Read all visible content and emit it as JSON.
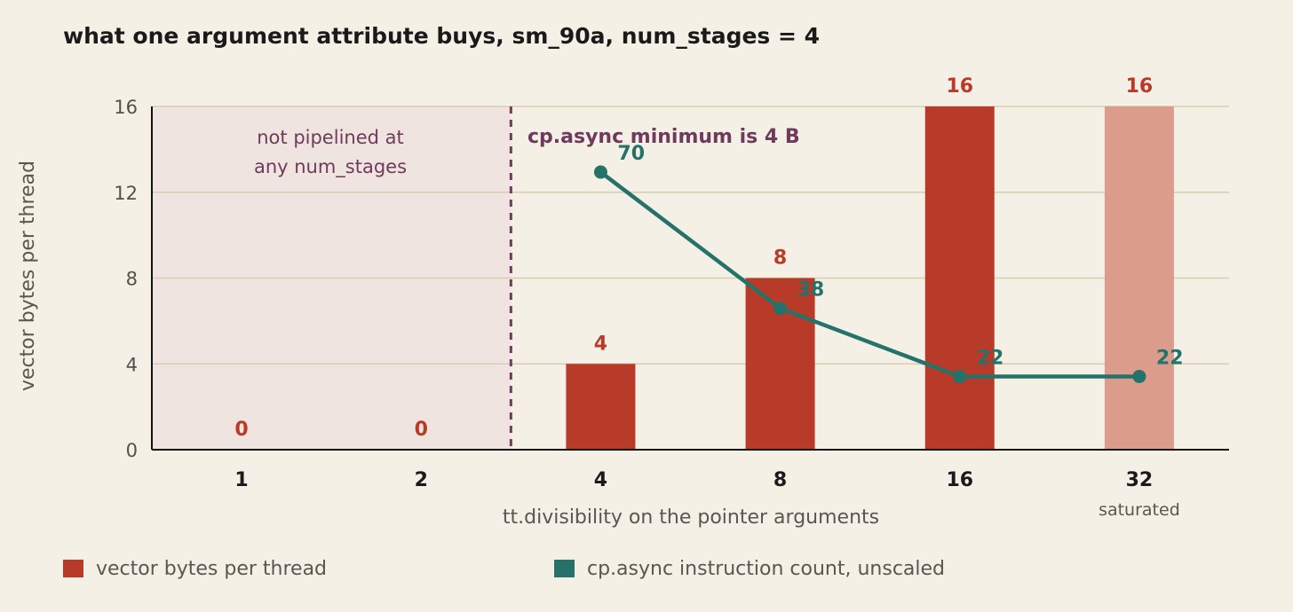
{
  "chart_data": {
    "type": "bar",
    "title": "what one argument attribute buys, sm_90a, num_stages = 4",
    "xlabel": "tt.divisibility on the pointer arguments",
    "ylabel": "vector bytes per thread",
    "categories": [
      "1",
      "2",
      "4",
      "8",
      "16",
      "32"
    ],
    "ylim": [
      0,
      16
    ],
    "yticks": [
      "0",
      "4",
      "8",
      "12",
      "16"
    ],
    "grid": true,
    "series": [
      {
        "name": "vector bytes per thread",
        "kind": "bar",
        "color": "#b83a28",
        "values": [
          0,
          0,
          4,
          8,
          16,
          16
        ],
        "labels": [
          "0",
          "0",
          "4",
          "8",
          "16",
          "16"
        ],
        "faded": [
          false,
          false,
          false,
          false,
          false,
          true
        ]
      },
      {
        "name": "cp.async instruction count, unscaled",
        "kind": "line",
        "color": "#24726a",
        "values": [
          null,
          null,
          70,
          38,
          22,
          22
        ],
        "labels": [
          "",
          "",
          "70",
          "38",
          "22",
          "22"
        ]
      }
    ],
    "annotations": {
      "shaded_region_line1": "not pipelined at",
      "shaded_region_line2": "any num_stages",
      "threshold": "cp.async minimum is 4 B",
      "last_category_note": "saturated"
    },
    "legend_position": "bottom"
  }
}
